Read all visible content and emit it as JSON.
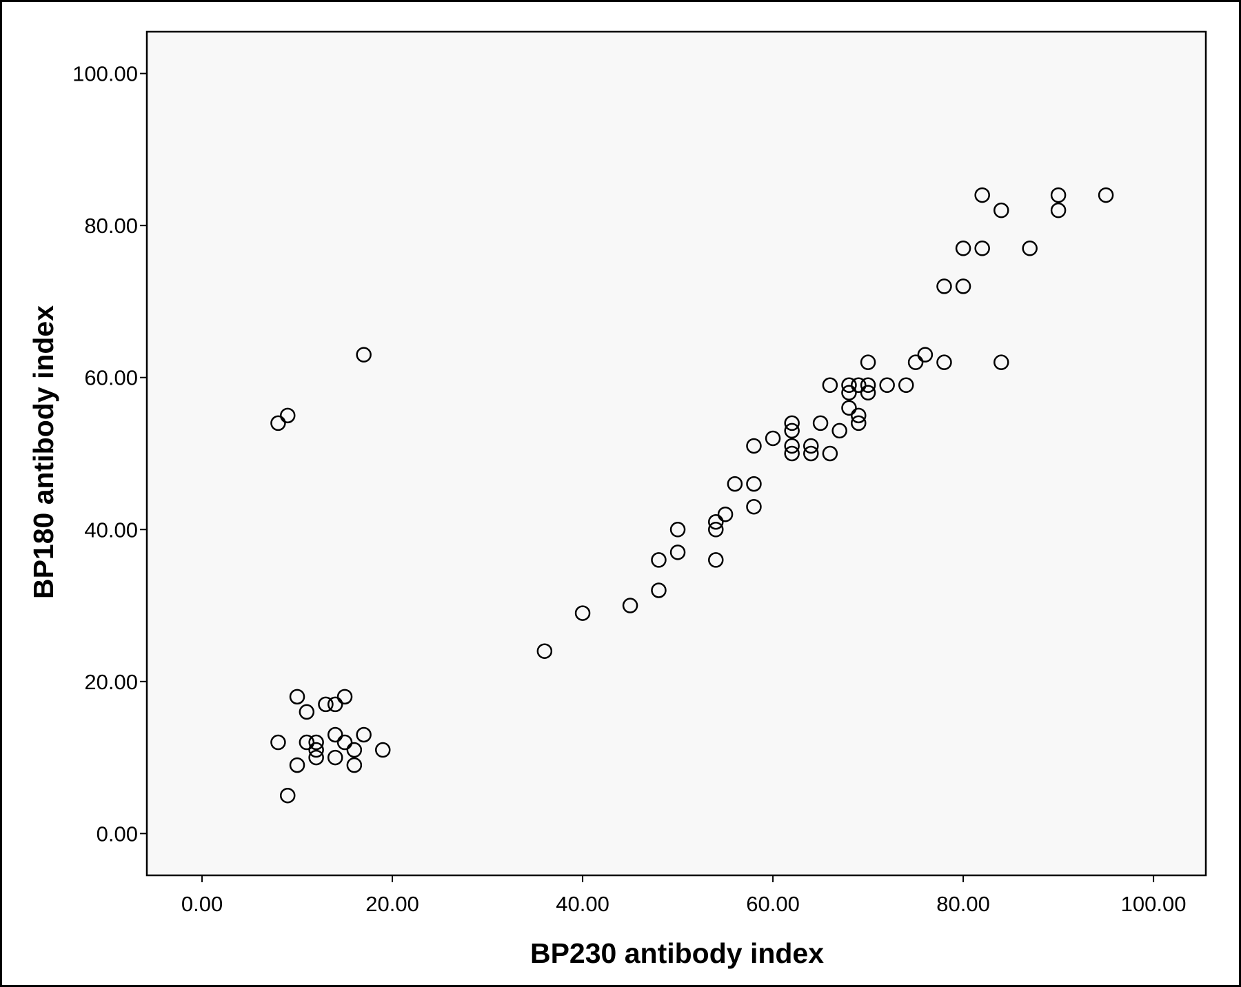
{
  "colors": {
    "background": "#ffffff",
    "plot_background": "#f8f8f8",
    "axis": "#000000",
    "marker_stroke": "#000000"
  },
  "chart_data": {
    "type": "scatter",
    "title": "",
    "xlabel": "BP230 antibody index",
    "ylabel": "BP180 antibody index",
    "xlim": [
      -5.8,
      105.5
    ],
    "ylim": [
      -5.5,
      105.5
    ],
    "x_ticks": [
      0,
      20,
      40,
      60,
      80,
      100
    ],
    "y_ticks": [
      0,
      20,
      40,
      60,
      80,
      100
    ],
    "x_tick_labels": [
      "0.00",
      "20.00",
      "40.00",
      "60.00",
      "80.00",
      "100.00"
    ],
    "y_tick_labels": [
      "0.00",
      "20.00",
      "40.00",
      "60.00",
      "80.00",
      "100.00"
    ],
    "grid": false,
    "legend": "none",
    "marker": "open-circle",
    "points": [
      [
        8,
        54
      ],
      [
        9,
        55
      ],
      [
        17,
        63
      ],
      [
        10,
        18
      ],
      [
        15,
        18
      ],
      [
        13,
        17
      ],
      [
        14,
        17
      ],
      [
        11,
        16
      ],
      [
        14,
        13
      ],
      [
        17,
        13
      ],
      [
        8,
        12
      ],
      [
        11,
        12
      ],
      [
        12,
        12
      ],
      [
        15,
        12
      ],
      [
        12,
        11
      ],
      [
        16,
        11
      ],
      [
        19,
        11
      ],
      [
        12,
        10
      ],
      [
        14,
        10
      ],
      [
        10,
        9
      ],
      [
        16,
        9
      ],
      [
        9,
        5
      ],
      [
        36,
        24
      ],
      [
        40,
        29
      ],
      [
        45,
        30
      ],
      [
        48,
        32
      ],
      [
        48,
        36
      ],
      [
        54,
        36
      ],
      [
        50,
        37
      ],
      [
        50,
        40
      ],
      [
        54,
        40
      ],
      [
        54,
        41
      ],
      [
        55,
        42
      ],
      [
        58,
        43
      ],
      [
        56,
        46
      ],
      [
        58,
        46
      ],
      [
        62,
        50
      ],
      [
        64,
        50
      ],
      [
        66,
        50
      ],
      [
        58,
        51
      ],
      [
        62,
        51
      ],
      [
        64,
        51
      ],
      [
        60,
        52
      ],
      [
        62,
        53
      ],
      [
        67,
        53
      ],
      [
        62,
        54
      ],
      [
        65,
        54
      ],
      [
        69,
        54
      ],
      [
        69,
        55
      ],
      [
        68,
        56
      ],
      [
        68,
        58
      ],
      [
        70,
        58
      ],
      [
        66,
        59
      ],
      [
        68,
        59
      ],
      [
        69,
        59
      ],
      [
        70,
        59
      ],
      [
        72,
        59
      ],
      [
        74,
        59
      ],
      [
        70,
        62
      ],
      [
        75,
        62
      ],
      [
        78,
        62
      ],
      [
        84,
        62
      ],
      [
        76,
        63
      ],
      [
        78,
        72
      ],
      [
        80,
        72
      ],
      [
        80,
        77
      ],
      [
        82,
        77
      ],
      [
        87,
        77
      ],
      [
        84,
        82
      ],
      [
        90,
        82
      ],
      [
        82,
        84
      ],
      [
        90,
        84
      ],
      [
        95,
        84
      ]
    ]
  }
}
